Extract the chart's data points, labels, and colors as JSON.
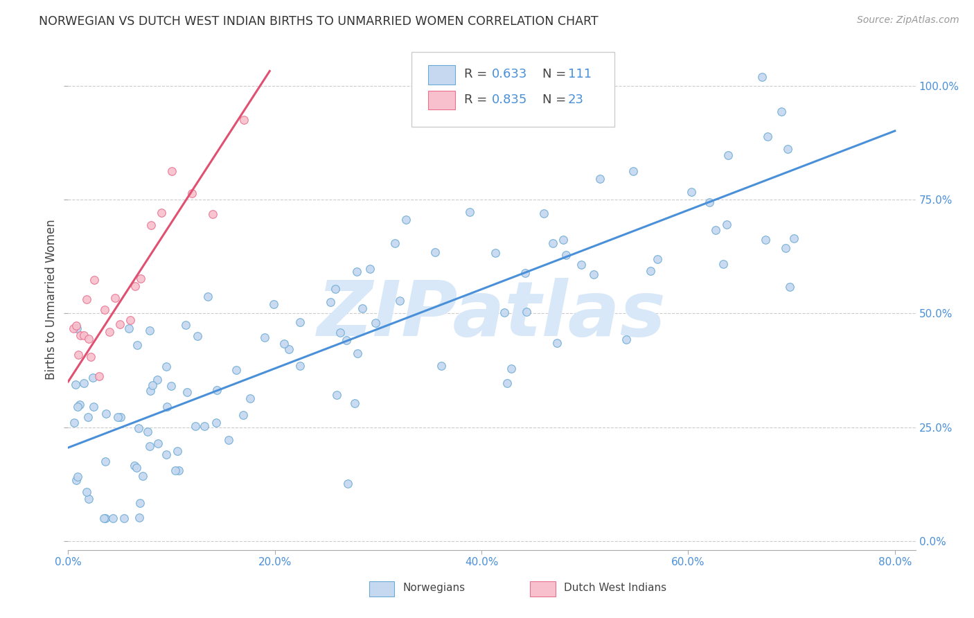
{
  "title": "NORWEGIAN VS DUTCH WEST INDIAN BIRTHS TO UNMARRIED WOMEN CORRELATION CHART",
  "source": "Source: ZipAtlas.com",
  "ylabel": "Births to Unmarried Women",
  "xlim": [
    0.0,
    0.82
  ],
  "ylim": [
    -0.02,
    1.08
  ],
  "norwegian_R": 0.633,
  "norwegian_N": 111,
  "dutch_R": 0.835,
  "dutch_N": 23,
  "norwegian_color": "#c5d8f0",
  "dutch_color": "#f8c0cc",
  "norwegian_edge_color": "#6aaad4",
  "dutch_edge_color": "#e87090",
  "norwegian_line_color": "#4a90d9",
  "dutch_line_color": "#e05070",
  "watermark_color": "#d8e8f8",
  "watermark_text": "ZIPatlas",
  "background_color": "#ffffff",
  "grid_color": "#cccccc",
  "title_color": "#333333",
  "source_color": "#999999",
  "legend_R_color": "#555555",
  "legend_N_color": "#4a90d9",
  "right_tick_color": "#4a90d9",
  "bottom_tick_color": "#4a90d9",
  "nor_line_intercept": 0.205,
  "nor_line_slope": 0.87,
  "dutch_line_intercept": 0.35,
  "dutch_line_slope": 3.5,
  "dutch_line_xmax": 0.195
}
